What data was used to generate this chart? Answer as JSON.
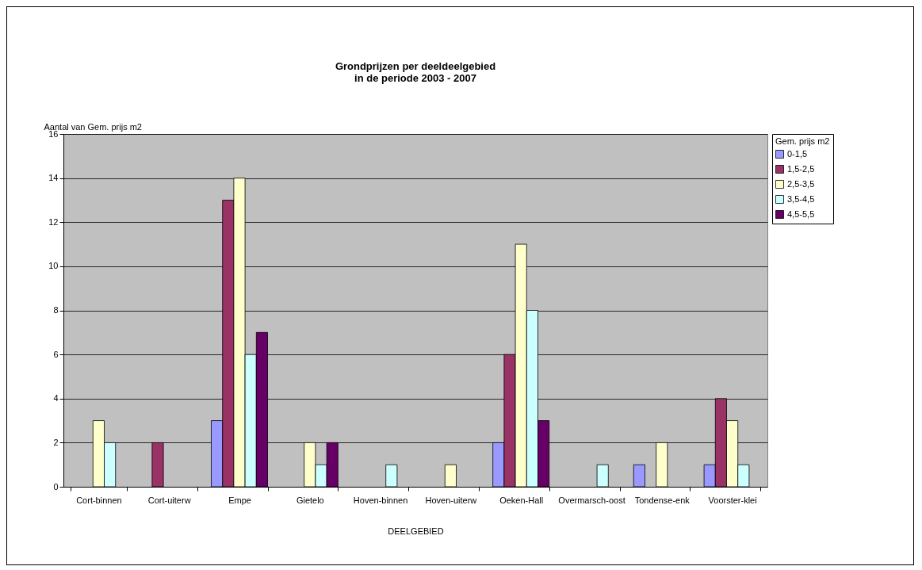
{
  "chart_data": {
    "type": "bar",
    "title": "Grondprijzen per deeldeelgebied\nin de periode 2003 - 2007",
    "ylabel": "Aantal van Gem. prijs m2",
    "xlabel": "DEELGEBIED",
    "legend_title": "Gem. prijs m2",
    "categories": [
      "Cort-binnen",
      "Cort-uiterw",
      "Empe",
      "Gietelo",
      "Hoven-binnen",
      "Hoven-uiterw",
      "Oeken-Hall",
      "Overmarsch-oost",
      "Tondense-enk",
      "Voorster-klei"
    ],
    "series": [
      {
        "name": "0-1,5",
        "color": "#9999ff",
        "values": [
          null,
          null,
          3,
          null,
          null,
          null,
          2,
          null,
          1,
          1
        ]
      },
      {
        "name": "1,5-2,5",
        "color": "#993366",
        "values": [
          null,
          2,
          13,
          null,
          null,
          null,
          6,
          null,
          null,
          4
        ]
      },
      {
        "name": "2,5-3,5",
        "color": "#ffffcc",
        "values": [
          3,
          null,
          14,
          2,
          null,
          1,
          11,
          null,
          2,
          3
        ]
      },
      {
        "name": "3,5-4,5",
        "color": "#ccffff",
        "values": [
          2,
          null,
          6,
          1,
          1,
          null,
          8,
          1,
          null,
          1
        ]
      },
      {
        "name": "4,5-5,5",
        "color": "#660066",
        "values": [
          null,
          null,
          7,
          2,
          null,
          null,
          3,
          null,
          null,
          null
        ]
      }
    ],
    "ylim": [
      0,
      16
    ],
    "yticks": [
      0,
      2,
      4,
      6,
      8,
      10,
      12,
      14,
      16
    ],
    "grid": "y",
    "legend": "right"
  }
}
